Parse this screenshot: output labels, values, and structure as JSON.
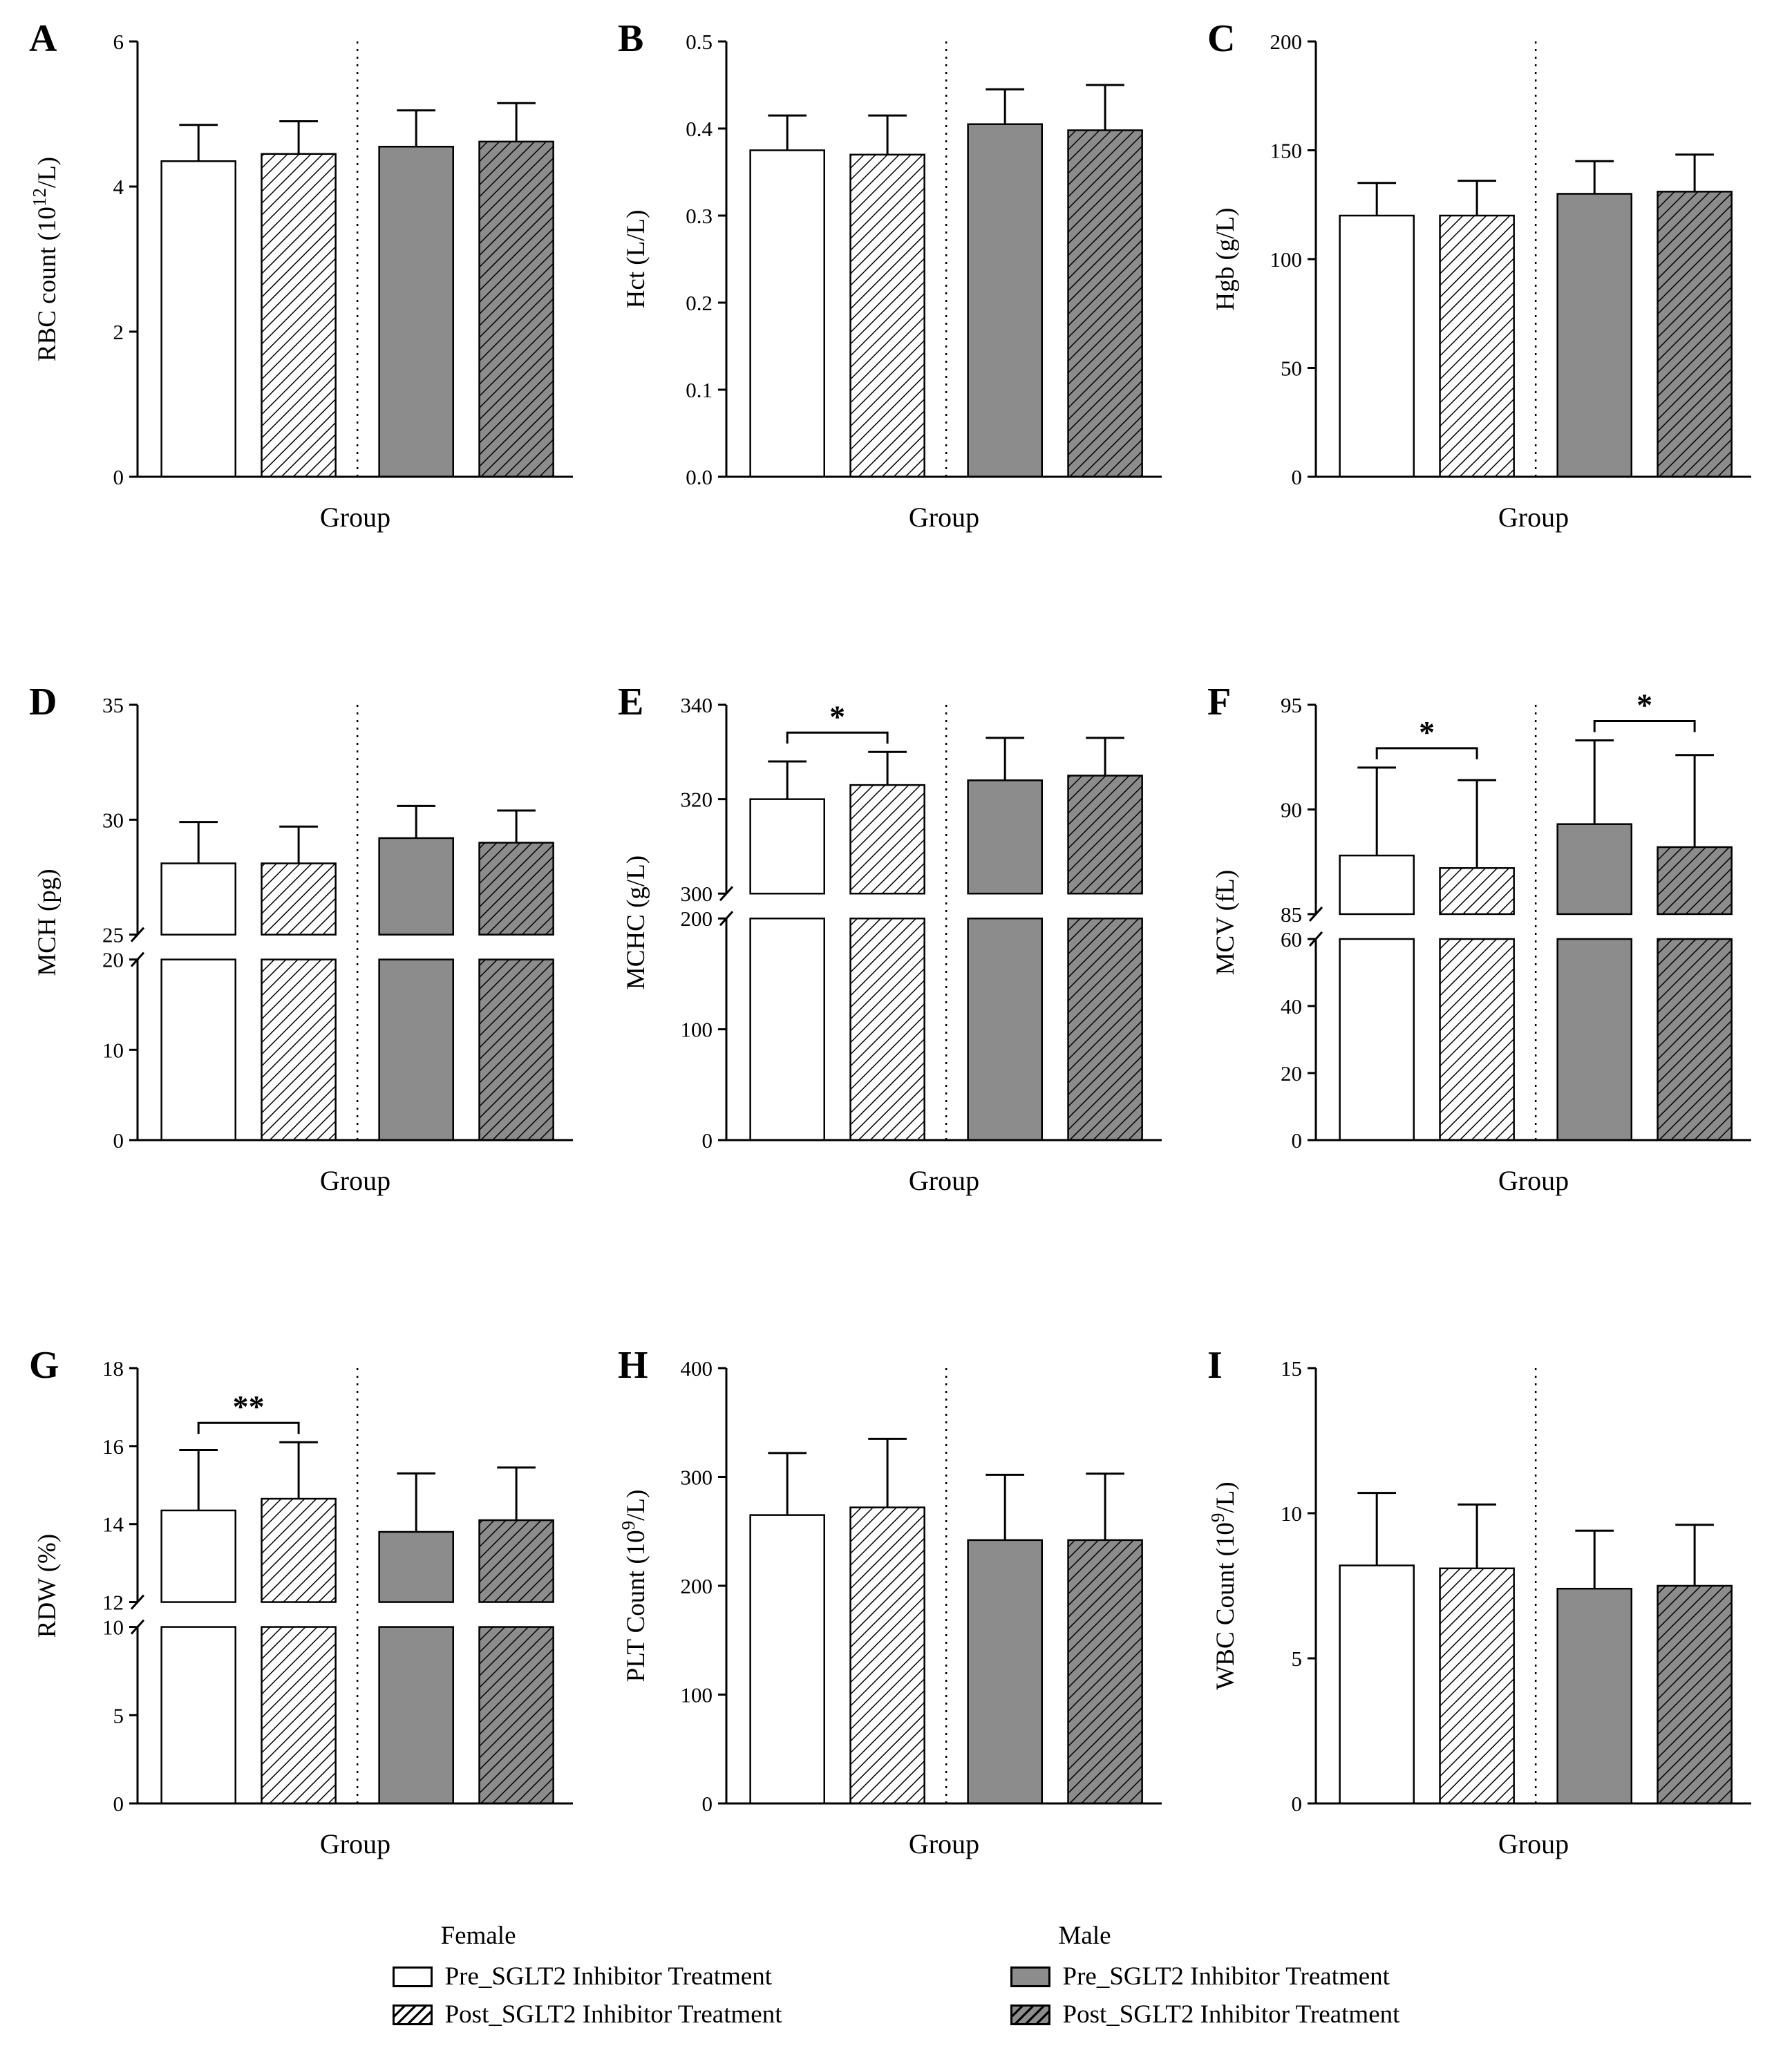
{
  "figure": {
    "background": "#ffffff",
    "bar_gray": "#8c8c8c",
    "outline_color": "#000000",
    "x_axis_label": "Group",
    "series_styles": [
      "white",
      "white-hatch",
      "gray",
      "gray-hatch"
    ]
  },
  "chart_data": [
    {
      "panel": "A",
      "type": "bar",
      "xlabel": "Group",
      "ylabel": "RBC count (10^{12}/L)",
      "categories": [
        "Female Pre_SGLT2 Inhibitor Treatment",
        "Female Post_SGLT2 Inhibitor Treatment",
        "Male Pre_SGLT2 Inhibitor Treatment",
        "Male Post_SGLT2 Inhibitor Treatment"
      ],
      "values": [
        4.35,
        4.45,
        4.55,
        4.62
      ],
      "errors": [
        0.5,
        0.45,
        0.5,
        0.53
      ],
      "ylim": [
        0,
        6
      ],
      "yticks": [
        0,
        2,
        4,
        6
      ],
      "tick_decimals": 0,
      "significance": []
    },
    {
      "panel": "B",
      "type": "bar",
      "xlabel": "Group",
      "ylabel": "Hct (L/L)",
      "categories": [
        "Female Pre_SGLT2 Inhibitor Treatment",
        "Female Post_SGLT2 Inhibitor Treatment",
        "Male Pre_SGLT2 Inhibitor Treatment",
        "Male Post_SGLT2 Inhibitor Treatment"
      ],
      "values": [
        0.375,
        0.37,
        0.405,
        0.398
      ],
      "errors": [
        0.04,
        0.045,
        0.04,
        0.052
      ],
      "ylim": [
        0,
        0.5
      ],
      "yticks": [
        0,
        0.1,
        0.2,
        0.3,
        0.4,
        0.5
      ],
      "tick_decimals": 1,
      "significance": []
    },
    {
      "panel": "C",
      "type": "bar",
      "xlabel": "Group",
      "ylabel": "Hgb (g/L)",
      "categories": [
        "Female Pre_SGLT2 Inhibitor Treatment",
        "Female Post_SGLT2 Inhibitor Treatment",
        "Male Pre_SGLT2 Inhibitor Treatment",
        "Male Post_SGLT2 Inhibitor Treatment"
      ],
      "values": [
        120,
        120,
        130,
        131
      ],
      "errors": [
        15,
        16,
        15,
        17
      ],
      "ylim": [
        0,
        200
      ],
      "yticks": [
        0,
        50,
        100,
        150,
        200
      ],
      "tick_decimals": 0,
      "significance": []
    },
    {
      "panel": "D",
      "type": "bar",
      "xlabel": "Group",
      "ylabel": "MCH (pg)",
      "categories": [
        "Female Pre_SGLT2 Inhibitor Treatment",
        "Female Post_SGLT2 Inhibitor Treatment",
        "Male Pre_SGLT2 Inhibitor Treatment",
        "Male Post_SGLT2 Inhibitor Treatment"
      ],
      "values": [
        28.1,
        28.1,
        29.2,
        29.0
      ],
      "errors": [
        1.8,
        1.6,
        1.4,
        1.4
      ],
      "tick_decimals": 0,
      "axis_break": {
        "lower": [
          0,
          20
        ],
        "upper": [
          25,
          35
        ],
        "lower_ticks": [
          0,
          10,
          20
        ],
        "upper_ticks": [
          25,
          30,
          35
        ],
        "lower_frac": 0.44
      },
      "significance": []
    },
    {
      "panel": "E",
      "type": "bar",
      "xlabel": "Group",
      "ylabel": "MCHC (g/L)",
      "categories": [
        "Female Pre_SGLT2 Inhibitor Treatment",
        "Female Post_SGLT2 Inhibitor Treatment",
        "Male Pre_SGLT2 Inhibitor Treatment",
        "Male Post_SGLT2 Inhibitor Treatment"
      ],
      "values": [
        320,
        323,
        324,
        325
      ],
      "errors": [
        8,
        7,
        9,
        8
      ],
      "tick_decimals": 0,
      "axis_break": {
        "lower": [
          0,
          200
        ],
        "upper": [
          300,
          340
        ],
        "lower_ticks": [
          0,
          100,
          200
        ],
        "upper_ticks": [
          300,
          320,
          340
        ],
        "lower_frac": 0.54
      },
      "significance": [
        {
          "pair": [
            0,
            1
          ],
          "label": "*"
        }
      ]
    },
    {
      "panel": "F",
      "type": "bar",
      "xlabel": "Group",
      "ylabel": "MCV (fL)",
      "categories": [
        "Female Pre_SGLT2 Inhibitor Treatment",
        "Female Post_SGLT2 Inhibitor Treatment",
        "Male Pre_SGLT2 Inhibitor Treatment",
        "Male Post_SGLT2 Inhibitor Treatment"
      ],
      "values": [
        87.8,
        87.2,
        89.3,
        88.2
      ],
      "errors": [
        4.2,
        4.2,
        4.0,
        4.4
      ],
      "tick_decimals": 0,
      "axis_break": {
        "lower": [
          0,
          60
        ],
        "upper": [
          85,
          95
        ],
        "lower_ticks": [
          0,
          20,
          40,
          60
        ],
        "upper_ticks": [
          85,
          90,
          95
        ],
        "lower_frac": 0.49
      },
      "significance": [
        {
          "pair": [
            0,
            1
          ],
          "label": "*"
        },
        {
          "pair": [
            2,
            3
          ],
          "label": "*"
        }
      ]
    },
    {
      "panel": "G",
      "type": "bar",
      "xlabel": "Group",
      "ylabel": "RDW (%)",
      "categories": [
        "Female Pre_SGLT2 Inhibitor Treatment",
        "Female Post_SGLT2 Inhibitor Treatment",
        "Male Pre_SGLT2 Inhibitor Treatment",
        "Male Post_SGLT2 Inhibitor Treatment"
      ],
      "values": [
        14.35,
        14.65,
        13.8,
        14.1
      ],
      "errors": [
        1.55,
        1.45,
        1.5,
        1.35
      ],
      "tick_decimals": 0,
      "axis_break": {
        "lower": [
          0,
          10
        ],
        "upper": [
          12,
          18
        ],
        "lower_ticks": [
          0,
          5,
          10
        ],
        "upper_ticks": [
          12,
          14,
          16,
          18
        ],
        "lower_frac": 0.43
      },
      "significance": [
        {
          "pair": [
            0,
            1
          ],
          "label": "**"
        }
      ]
    },
    {
      "panel": "H",
      "type": "bar",
      "xlabel": "Group",
      "ylabel": "PLT Count (10^{9}/L)",
      "categories": [
        "Female Pre_SGLT2 Inhibitor Treatment",
        "Female Post_SGLT2 Inhibitor Treatment",
        "Male Pre_SGLT2 Inhibitor Treatment",
        "Male Post_SGLT2 Inhibitor Treatment"
      ],
      "values": [
        265,
        272,
        242,
        242
      ],
      "errors": [
        57,
        63,
        60,
        61
      ],
      "ylim": [
        0,
        400
      ],
      "yticks": [
        0,
        100,
        200,
        300,
        400
      ],
      "tick_decimals": 0,
      "significance": []
    },
    {
      "panel": "I",
      "type": "bar",
      "xlabel": "Group",
      "ylabel": "WBC Count (10^{9}/L)",
      "categories": [
        "Female Pre_SGLT2 Inhibitor Treatment",
        "Female Post_SGLT2 Inhibitor Treatment",
        "Male Pre_SGLT2 Inhibitor Treatment",
        "Male Post_SGLT2 Inhibitor Treatment"
      ],
      "values": [
        8.2,
        8.1,
        7.4,
        7.5
      ],
      "errors": [
        2.5,
        2.2,
        2.0,
        2.1
      ],
      "ylim": [
        0,
        15
      ],
      "yticks": [
        0,
        5,
        10,
        15
      ],
      "tick_decimals": 0,
      "significance": []
    }
  ],
  "legend": {
    "columns": [
      {
        "header": "Female",
        "items": [
          {
            "style": "white",
            "label": "Pre_SGLT2 Inhibitor Treatment"
          },
          {
            "style": "white-hatch",
            "label": "Post_SGLT2 Inhibitor Treatment"
          }
        ]
      },
      {
        "header": "Male",
        "items": [
          {
            "style": "gray",
            "label": "Pre_SGLT2 Inhibitor Treatment"
          },
          {
            "style": "gray-hatch",
            "label": "Post_SGLT2 Inhibitor Treatment"
          }
        ]
      }
    ]
  }
}
